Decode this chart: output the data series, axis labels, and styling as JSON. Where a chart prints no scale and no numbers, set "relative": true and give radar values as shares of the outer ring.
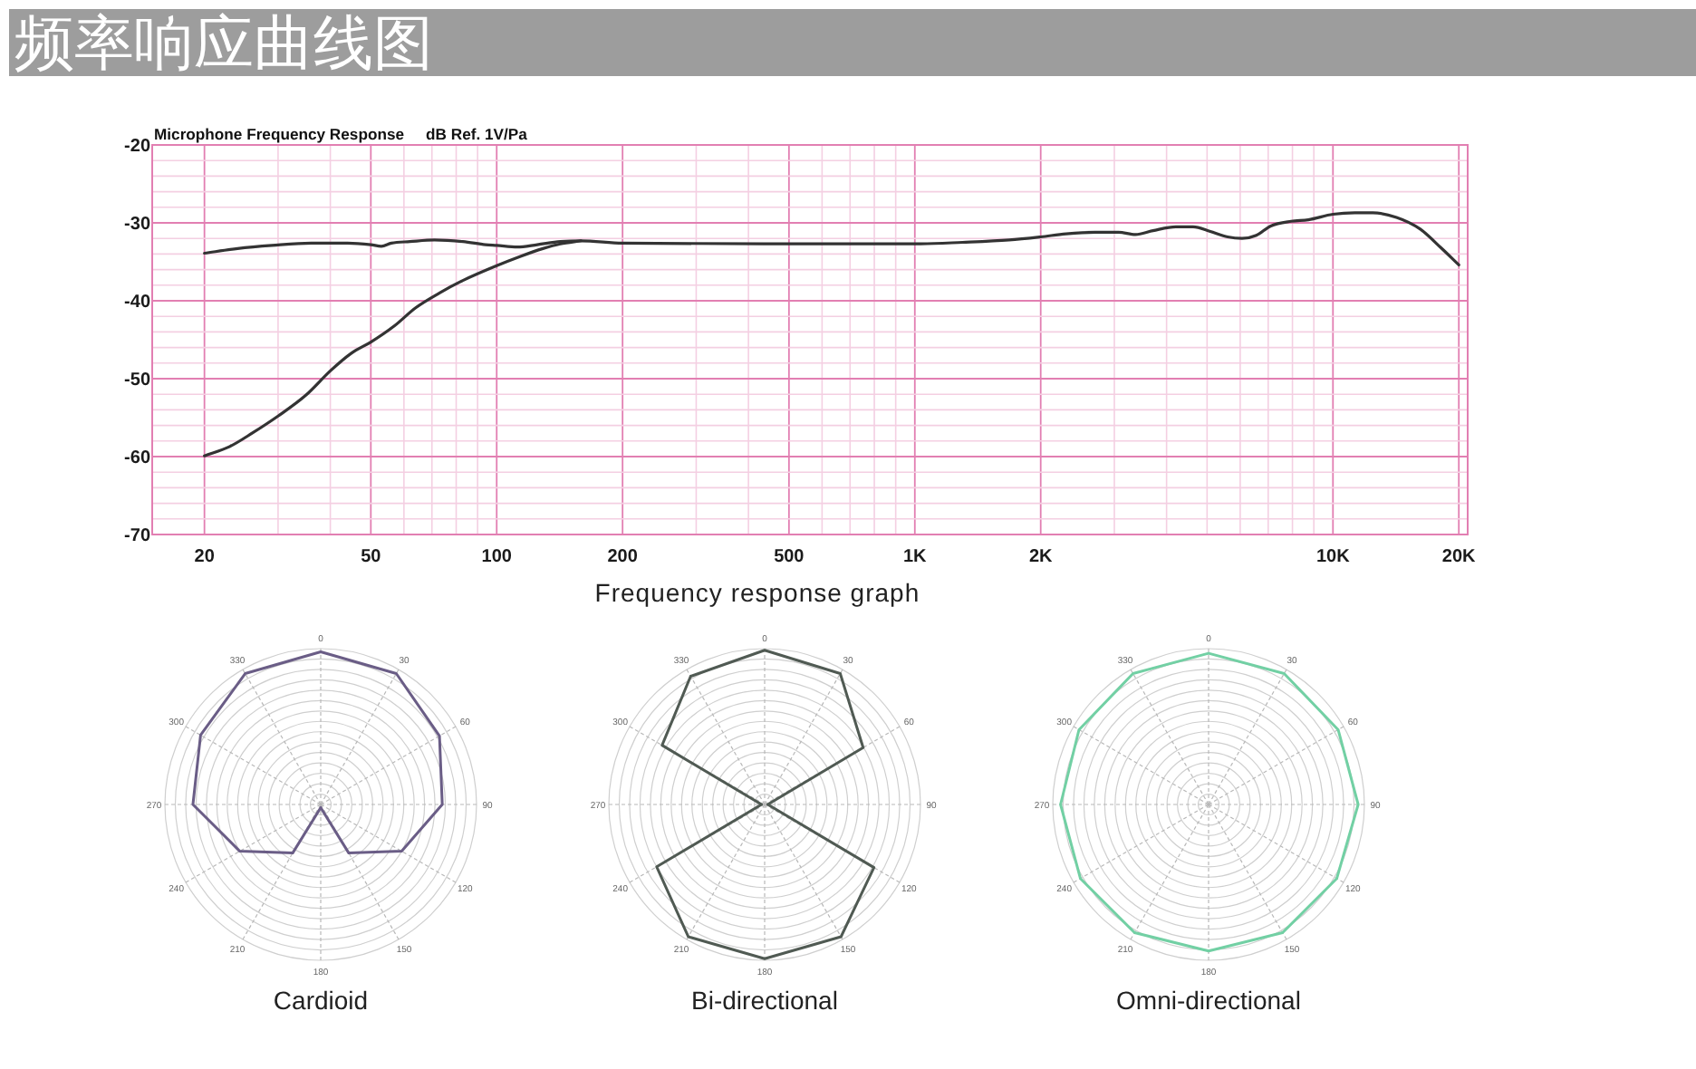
{
  "chart_data": [
    {
      "type": "line",
      "title": "频率响应曲线图",
      "subtitle": "Microphone Frequency Response",
      "ylabel": "dB Ref. 1V/Pa",
      "xlabel": "Frequency response graph",
      "log": "x",
      "grid": true,
      "xlim": [
        15,
        21000
      ],
      "ylim": [
        -70,
        -20
      ],
      "xticks": [
        20,
        50,
        100,
        200,
        500,
        {
          "value": 1000,
          "label": "1K"
        },
        {
          "value": 2000,
          "label": "2K"
        },
        {
          "value": 10000,
          "label": "10K"
        },
        {
          "value": 20000,
          "label": "20K"
        }
      ],
      "yticks": [
        -70,
        -60,
        -50,
        -40,
        -30,
        -20
      ],
      "series": [
        {
          "color": "#333333",
          "x": [
            20,
            24,
            29,
            36,
            44,
            50,
            53,
            56,
            62,
            71,
            83,
            94,
            100,
            112,
            125,
            142,
            159,
            200,
            500,
            1000,
            1300,
            1680,
            2000,
            2300,
            2700,
            3070,
            3370,
            3710,
            4210,
            4630,
            5090,
            5600,
            6060,
            6560,
            7100,
            7940,
            8730,
            10000,
            11280,
            12450,
            14190,
            16170,
            18130,
            20000
          ],
          "values": [
            -33.9,
            -33.3,
            -32.9,
            -32.6,
            -32.6,
            -32.8,
            -33.0,
            -32.6,
            -32.4,
            -32.2,
            -32.4,
            -32.8,
            -32.9,
            -33.1,
            -32.8,
            -32.4,
            -32.3,
            -32.6,
            -32.7,
            -32.7,
            -32.5,
            -32.2,
            -31.8,
            -31.4,
            -31.2,
            -31.2,
            -31.5,
            -31.0,
            -30.5,
            -30.5,
            -31.1,
            -31.8,
            -32.0,
            -31.6,
            -30.4,
            -29.8,
            -29.6,
            -28.9,
            -28.7,
            -28.7,
            -29.3,
            -30.8,
            -33.2,
            -35.4
          ]
        },
        {
          "color": "#333333",
          "x": [
            20,
            23,
            26,
            30,
            35,
            40,
            45,
            50,
            57,
            64,
            73,
            83,
            100,
            114,
            129,
            142,
            159
          ],
          "values": [
            -59.9,
            -58.7,
            -57.0,
            -54.8,
            -52.1,
            -49.0,
            -46.7,
            -45.3,
            -43.2,
            -40.9,
            -39.0,
            -37.4,
            -35.5,
            -34.3,
            -33.3,
            -32.7,
            -32.3
          ]
        }
      ]
    },
    {
      "type": "radar",
      "title": "Cardioid",
      "categories": [
        "0",
        "30",
        "60",
        "90",
        "120",
        "150",
        "180",
        "210",
        "240",
        "270",
        "300",
        "330"
      ],
      "relative": true,
      "grid": true,
      "series": [
        {
          "color": "#6a5d86",
          "values": [
            0.98,
            0.97,
            0.88,
            0.78,
            0.6,
            0.36,
            0.02,
            0.36,
            0.6,
            0.82,
            0.89,
            0.97
          ]
        }
      ]
    },
    {
      "type": "radar",
      "title": "Bi-directional",
      "categories": [
        "0",
        "30",
        "60",
        "90",
        "120",
        "150",
        "180",
        "210",
        "240",
        "270",
        "300",
        "330"
      ],
      "relative": true,
      "grid": true,
      "series": [
        {
          "color": "#505a53",
          "values": [
            0.99,
            0.97,
            0.73,
            0.02,
            0.81,
            0.98,
            0.99,
            0.98,
            0.8,
            0.02,
            0.76,
            0.95
          ]
        }
      ]
    },
    {
      "type": "radar",
      "title": "Omni-directional",
      "categories": [
        "0",
        "30",
        "60",
        "90",
        "120",
        "150",
        "180",
        "210",
        "240",
        "270",
        "300",
        "330"
      ],
      "relative": true,
      "grid": true,
      "series": [
        {
          "color": "#72d0a4",
          "values": [
            0.97,
            0.97,
            0.96,
            0.96,
            0.95,
            0.95,
            0.94,
            0.95,
            0.95,
            0.95,
            0.96,
            0.97
          ]
        }
      ]
    }
  ]
}
